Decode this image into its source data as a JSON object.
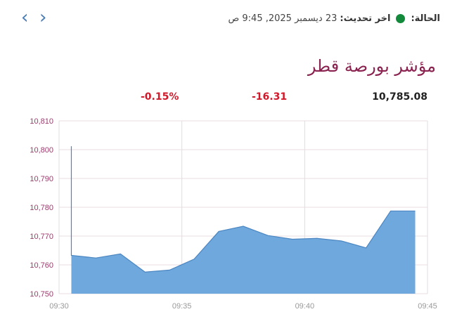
{
  "nav": {
    "prev_icon": "chevron-left-icon",
    "next_icon": "chevron-right-icon"
  },
  "status": {
    "label": "الحالة:",
    "indicator_color": "#138a3b",
    "updated_label": "اخر تحديث:",
    "updated_value": "23 ديسمبر 2025, 9:45 ص"
  },
  "title": "مؤشر بورصة قطر",
  "stats": {
    "value": "10,785.08",
    "change": "-16.31",
    "percent": "-0.15%",
    "change_color": "#d0192a"
  },
  "chart_data": {
    "type": "area",
    "title": "",
    "xlabel": "",
    "ylabel": "",
    "ylim": [
      10750,
      10810
    ],
    "yticks": [
      "10,750",
      "10,760",
      "10,770",
      "10,780",
      "10,790",
      "10,800",
      "10,810"
    ],
    "xticks": [
      "09:30",
      "09:35",
      "09:40",
      "09:45"
    ],
    "grid": true,
    "color": "#6fa8dc",
    "x": [
      "09:30:30",
      "09:30:30",
      "09:31:30",
      "09:32:30",
      "09:33:30",
      "09:34:30",
      "09:35:30",
      "09:36:30",
      "09:37:30",
      "09:38:30",
      "09:39:30",
      "09:40:30",
      "09:41:30",
      "09:42:30",
      "09:43:30",
      "09:44:30"
    ],
    "values": [
      10801.2,
      10763.3,
      10762.4,
      10763.8,
      10757.5,
      10758.2,
      10762.0,
      10771.6,
      10773.4,
      10770.2,
      10768.9,
      10769.2,
      10768.3,
      10765.9,
      10778.7,
      10778.7
    ]
  }
}
